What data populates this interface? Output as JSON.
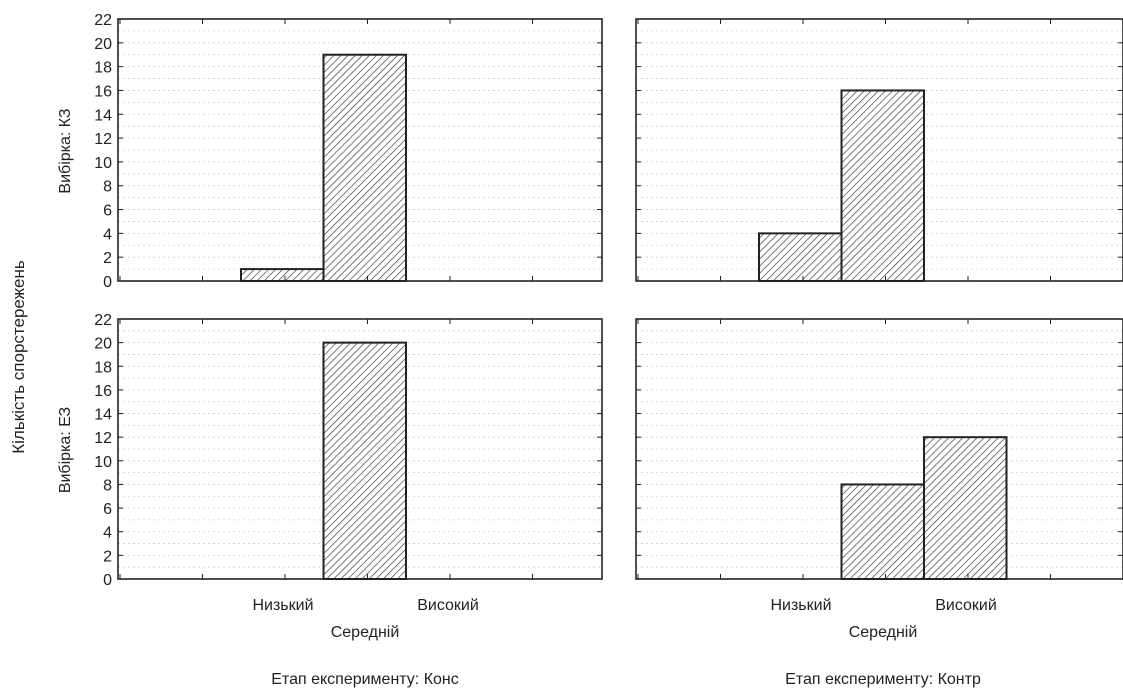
{
  "y_label": "Кількість спорстережень",
  "colors": {
    "bar_fill": "#ffffff",
    "hatch": "#333333",
    "frame": "#222222",
    "grid": "#cfcfcf"
  },
  "chart_data": [
    {
      "type": "bar",
      "row_label": "Вибірка: КЗ",
      "column_label": "Етап експерименту: Конс",
      "categories": [
        "Низький",
        "Середній",
        "Високий"
      ],
      "values": [
        1,
        19,
        0
      ],
      "ylim": [
        0,
        22
      ],
      "yticks": [
        0,
        2,
        4,
        6,
        8,
        10,
        12,
        14,
        16,
        18,
        20,
        22
      ],
      "grid": true
    },
    {
      "type": "bar",
      "row_label": "Вибірка: КЗ",
      "column_label": "Етап експерименту: Контр",
      "categories": [
        "Низький",
        "Середній",
        "Високий"
      ],
      "values": [
        4,
        16,
        0
      ],
      "ylim": [
        0,
        22
      ],
      "yticks": [],
      "grid": true
    },
    {
      "type": "bar",
      "row_label": "Вибірка: ЕЗ",
      "column_label": "Етап експерименту: Конс",
      "categories": [
        "Низький",
        "Середній",
        "Високий"
      ],
      "values": [
        0,
        20,
        0
      ],
      "ylim": [
        0,
        22
      ],
      "yticks": [
        0,
        2,
        4,
        6,
        8,
        10,
        12,
        14,
        16,
        18,
        20,
        22
      ],
      "grid": true
    },
    {
      "type": "bar",
      "row_label": "Вибірка: ЕЗ",
      "column_label": "Етап експерименту: Контр",
      "categories": [
        "Низький",
        "Середній",
        "Високий"
      ],
      "values": [
        0,
        8,
        12
      ],
      "ylim": [
        0,
        22
      ],
      "yticks": [],
      "grid": true
    }
  ],
  "x_tick_rows": [
    [
      "Низький",
      "Високий"
    ],
    [
      "Середній"
    ]
  ],
  "row_labels": [
    "Вибірка: КЗ",
    "Вибірка: ЕЗ"
  ],
  "column_labels": [
    "Етап експерименту: Конс",
    "Етап експерименту: Контр"
  ]
}
